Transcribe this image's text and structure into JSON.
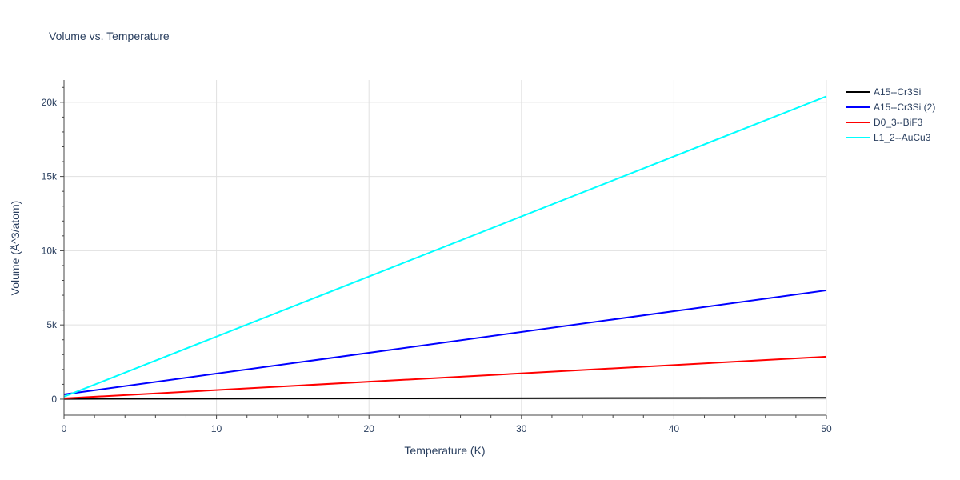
{
  "chart_data": {
    "type": "line",
    "title": "Volume vs. Temperature",
    "xlabel": "Temperature (K)",
    "ylabel": "Volume (Å^3/atom)",
    "xlim": [
      0,
      50
    ],
    "ylim": [
      -1080,
      21500
    ],
    "x_ticks": [
      0,
      10,
      20,
      30,
      40,
      50
    ],
    "x_tick_labels": [
      "0",
      "10",
      "20",
      "30",
      "40",
      "50"
    ],
    "y_ticks": [
      0,
      5000,
      10000,
      15000,
      20000
    ],
    "y_tick_labels": [
      "0",
      "5k",
      "10k",
      "15k",
      "20k"
    ],
    "grid": true,
    "legend_position": "top-right",
    "x": [
      0,
      50
    ],
    "series": [
      {
        "name": "A15--Cr3Si",
        "color": "#000000",
        "values": [
          20,
          90
        ]
      },
      {
        "name": "A15--Cr3Si (2)",
        "color": "#0000ff",
        "values": [
          320,
          7330
        ]
      },
      {
        "name": "D0_3--BiF3",
        "color": "#ff0000",
        "values": [
          50,
          2860
        ]
      },
      {
        "name": "L1_2--AuCu3",
        "color": "#00ffff",
        "values": [
          170,
          20400
        ]
      }
    ]
  }
}
